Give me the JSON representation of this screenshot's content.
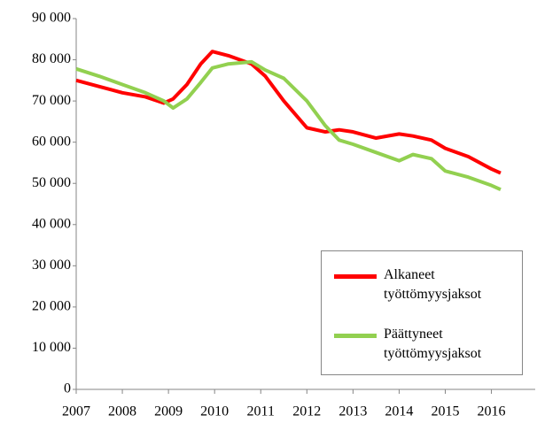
{
  "chart_data": {
    "type": "line",
    "x": [
      2007,
      2007.5,
      2008,
      2008.5,
      2008.9,
      2009.1,
      2009.4,
      2009.7,
      2009.95,
      2010.3,
      2010.8,
      2011.1,
      2011.5,
      2012,
      2012.4,
      2012.7,
      2013,
      2013.5,
      2014,
      2014.3,
      2014.7,
      2015,
      2015.5,
      2016,
      2016.2
    ],
    "series": [
      {
        "name": "Alkaneet työttömyysjaksot",
        "color": "#ff0000",
        "values": [
          75000,
          73500,
          72000,
          71000,
          69500,
          70500,
          74000,
          79000,
          82000,
          81000,
          79000,
          76000,
          70000,
          63500,
          62500,
          63000,
          62500,
          61000,
          62000,
          61500,
          60500,
          58500,
          56500,
          53500,
          52500
        ]
      },
      {
        "name": "Päättyneet työttömyysjaksot",
        "color": "#92d050",
        "values": [
          77800,
          76000,
          74000,
          72000,
          70000,
          68300,
          70500,
          74500,
          78000,
          79000,
          79500,
          77500,
          75500,
          70000,
          64000,
          60500,
          59500,
          57500,
          55500,
          57000,
          56000,
          53000,
          51500,
          49500,
          48500
        ]
      }
    ],
    "xlim": [
      2007,
      2016.95
    ],
    "xticks": [
      2007,
      2008,
      2009,
      2010,
      2011,
      2012,
      2013,
      2014,
      2015,
      2016
    ],
    "ylim": [
      0,
      90000
    ],
    "yticks": [
      0,
      {
        "value": 10000,
        "label": "10 000"
      },
      {
        "value": 20000,
        "label": "20 000"
      },
      {
        "value": 30000,
        "label": "30 000"
      },
      {
        "value": 40000,
        "label": "40 000"
      },
      {
        "value": 50000,
        "label": "50 000"
      },
      {
        "value": 60000,
        "label": "60 000"
      },
      {
        "value": 70000,
        "label": "70 000"
      },
      {
        "value": 80000,
        "label": "80 000"
      },
      {
        "value": 90000,
        "label": "90 000"
      }
    ],
    "grid": false,
    "legend": "lower right"
  }
}
